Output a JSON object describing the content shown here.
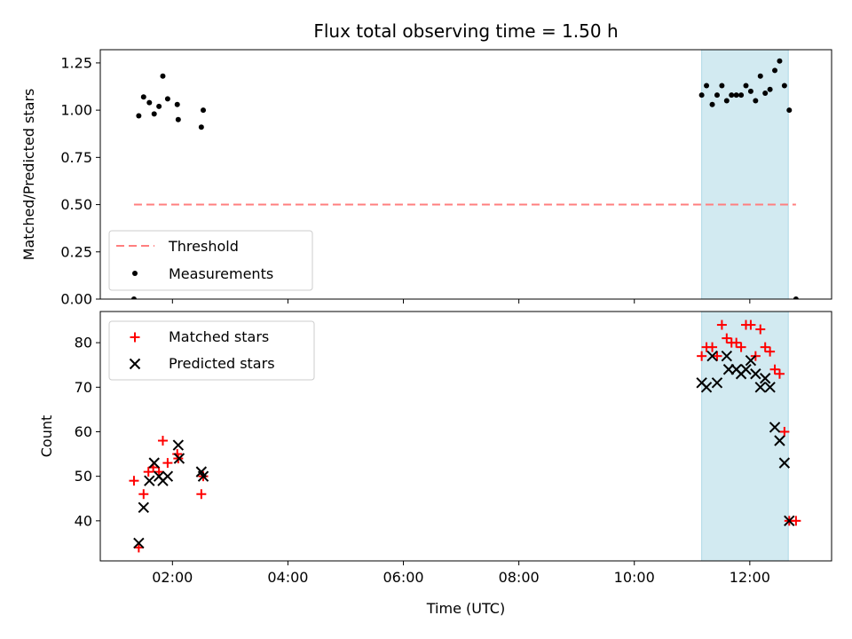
{
  "title": "Flux total observing time = 1.50 h",
  "xlabel": "Time (UTC)",
  "colors": {
    "threshold": "#ff7f7f",
    "measurements": "#000000",
    "matched": "#ff0000",
    "predicted": "#000000",
    "span": "#add8e6"
  },
  "chart_data": [
    {
      "type": "scatter",
      "ylabel": "Matched/Predicted stars",
      "ylim": [
        0,
        1.32
      ],
      "yticks": [
        "0.00",
        "0.25",
        "0.50",
        "0.75",
        "1.00",
        "1.25"
      ],
      "xlim": [
        "00:45",
        "13:25"
      ],
      "xticks": [
        "02:00",
        "04:00",
        "06:00",
        "08:00",
        "10:00",
        "12:00"
      ],
      "xticklabels_visible": false,
      "highlight_span": [
        "11:10",
        "12:40"
      ],
      "legend": {
        "position": "lower-left",
        "entries": [
          "Threshold",
          "Measurements"
        ]
      },
      "series": [
        {
          "name": "Threshold",
          "kind": "dashed-line",
          "points": [
            [
              "01:20",
              0.5
            ],
            [
              "12:48",
              0.5
            ]
          ]
        },
        {
          "name": "Measurements",
          "kind": "dot",
          "points": [
            [
              "01:20",
              0.0
            ],
            [
              "01:25",
              0.97
            ],
            [
              "01:30",
              1.07
            ],
            [
              "01:36",
              1.04
            ],
            [
              "01:41",
              0.98
            ],
            [
              "01:46",
              1.02
            ],
            [
              "01:50",
              1.18
            ],
            [
              "01:55",
              1.06
            ],
            [
              "02:05",
              1.03
            ],
            [
              "02:06",
              0.95
            ],
            [
              "02:30",
              0.91
            ],
            [
              "02:32",
              1.0
            ],
            [
              "11:10",
              1.08
            ],
            [
              "11:15",
              1.13
            ],
            [
              "11:21",
              1.03
            ],
            [
              "11:26",
              1.08
            ],
            [
              "11:31",
              1.13
            ],
            [
              "11:36",
              1.05
            ],
            [
              "11:41",
              1.08
            ],
            [
              "11:46",
              1.08
            ],
            [
              "11:51",
              1.08
            ],
            [
              "11:56",
              1.13
            ],
            [
              "12:01",
              1.1
            ],
            [
              "12:06",
              1.05
            ],
            [
              "12:11",
              1.18
            ],
            [
              "12:16",
              1.09
            ],
            [
              "12:21",
              1.11
            ],
            [
              "12:26",
              1.21
            ],
            [
              "12:31",
              1.26
            ],
            [
              "12:36",
              1.13
            ],
            [
              "12:41",
              1.0
            ],
            [
              "12:48",
              0.0
            ]
          ]
        }
      ]
    },
    {
      "type": "scatter",
      "ylabel": "Count",
      "ylim": [
        31,
        87
      ],
      "yticks": [
        "40",
        "50",
        "60",
        "70",
        "80"
      ],
      "xlim": [
        "00:45",
        "13:25"
      ],
      "xticks": [
        "02:00",
        "04:00",
        "06:00",
        "08:00",
        "10:00",
        "12:00"
      ],
      "xticklabels_visible": true,
      "highlight_span": [
        "11:10",
        "12:40"
      ],
      "legend": {
        "position": "top-left",
        "entries": [
          "Matched stars",
          "Predicted stars"
        ]
      },
      "series": [
        {
          "name": "Matched stars",
          "kind": "plus",
          "points": [
            [
              "01:20",
              49
            ],
            [
              "01:25",
              34
            ],
            [
              "01:30",
              46
            ],
            [
              "01:35",
              51
            ],
            [
              "01:40",
              52
            ],
            [
              "01:46",
              51
            ],
            [
              "01:50",
              58
            ],
            [
              "01:55",
              53
            ],
            [
              "02:05",
              55
            ],
            [
              "02:06",
              54
            ],
            [
              "02:30",
              46
            ],
            [
              "02:32",
              50
            ],
            [
              "11:10",
              77
            ],
            [
              "11:15",
              79
            ],
            [
              "11:21",
              79
            ],
            [
              "11:26",
              77
            ],
            [
              "11:31",
              84
            ],
            [
              "11:36",
              81
            ],
            [
              "11:41",
              80
            ],
            [
              "11:46",
              80
            ],
            [
              "11:51",
              79
            ],
            [
              "11:56",
              84
            ],
            [
              "12:01",
              84
            ],
            [
              "12:06",
              77
            ],
            [
              "12:11",
              83
            ],
            [
              "12:16",
              79
            ],
            [
              "12:21",
              78
            ],
            [
              "12:26",
              74
            ],
            [
              "12:31",
              73
            ],
            [
              "12:36",
              60
            ],
            [
              "12:41",
              40
            ],
            [
              "12:48",
              40
            ]
          ]
        },
        {
          "name": "Predicted stars",
          "kind": "x",
          "points": [
            [
              "01:25",
              35
            ],
            [
              "01:30",
              43
            ],
            [
              "01:36",
              49
            ],
            [
              "01:41",
              53
            ],
            [
              "01:46",
              50
            ],
            [
              "01:50",
              49
            ],
            [
              "01:55",
              50
            ],
            [
              "02:06",
              57
            ],
            [
              "02:07",
              54
            ],
            [
              "02:30",
              51
            ],
            [
              "02:32",
              50
            ],
            [
              "11:10",
              71
            ],
            [
              "11:15",
              70
            ],
            [
              "11:21",
              77
            ],
            [
              "11:26",
              71
            ],
            [
              "11:36",
              77
            ],
            [
              "11:38",
              74
            ],
            [
              "11:46",
              74
            ],
            [
              "11:51",
              73
            ],
            [
              "11:56",
              74
            ],
            [
              "12:01",
              76
            ],
            [
              "12:06",
              73
            ],
            [
              "12:11",
              70
            ],
            [
              "12:16",
              72
            ],
            [
              "12:21",
              70
            ],
            [
              "12:26",
              61
            ],
            [
              "12:31",
              58
            ],
            [
              "12:36",
              53
            ],
            [
              "12:41",
              40
            ]
          ]
        }
      ]
    }
  ]
}
